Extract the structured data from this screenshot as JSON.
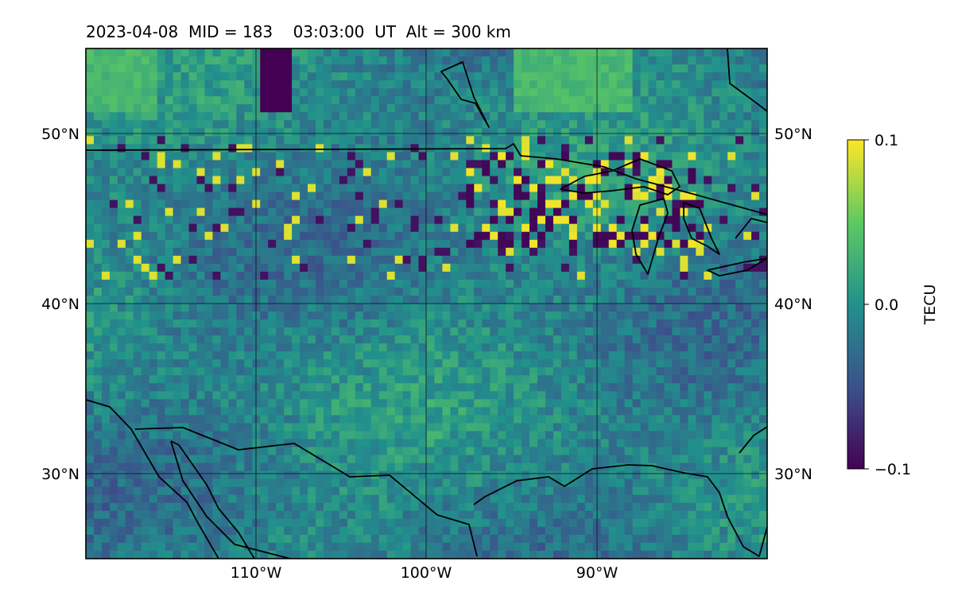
{
  "title": "2023-04-08  MID = 183    03:03:00  UT  Alt = 300 km",
  "chart_data": {
    "type": "heatmap",
    "title": "2023-04-08  MID = 183    03:03:00  UT  Alt = 300 km",
    "map_extent": {
      "lon": [
        -120,
        -80
      ],
      "lat": [
        25,
        55
      ]
    },
    "lon_ticks": [
      {
        "value": -110,
        "label": "110°W"
      },
      {
        "value": -100,
        "label": "100°W"
      },
      {
        "value": -90,
        "label": "90°W"
      }
    ],
    "lat_ticks": [
      {
        "value": 30,
        "label": "30°N"
      },
      {
        "value": 40,
        "label": "40°N"
      },
      {
        "value": 50,
        "label": "50°N"
      }
    ],
    "colorbar": {
      "label": "TECU",
      "min": -0.1,
      "max": 0.1,
      "colormap": "viridis",
      "ticks": [
        {
          "value": 0.1,
          "label": "0.1"
        },
        {
          "value": 0.0,
          "label": "0.0"
        },
        {
          "value": -0.1,
          "label": "−0.1"
        }
      ]
    },
    "grid": true,
    "notable_features": [
      {
        "lon": [
          -110,
          -108
        ],
        "lat": [
          53,
          55
        ],
        "value": -0.1
      },
      {
        "lon": [
          -98,
          -85
        ],
        "lat": [
          44,
          48.5
        ],
        "value": "mixed ±0.1"
      }
    ]
  }
}
